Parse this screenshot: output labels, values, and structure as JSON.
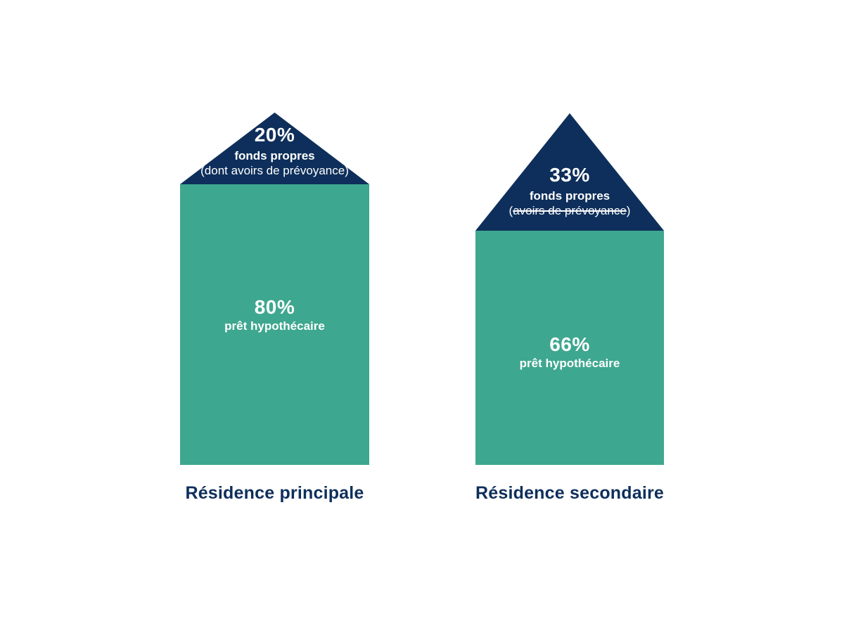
{
  "colors": {
    "roof_navy": "#0e2f5b",
    "body_teal": "#3ea78f",
    "text_white": "#ffffff",
    "label_navy": "#0e2f5b",
    "background": "#ffffff"
  },
  "chart_data": {
    "type": "bar",
    "subtype": "stacked-house-pictogram",
    "categories": [
      "Résidence principale",
      "Résidence secondaire"
    ],
    "series": [
      {
        "name": "fonds propres",
        "values": [
          20,
          33
        ],
        "color": "#0e2f5b",
        "shape": "roof-triangle"
      },
      {
        "name": "prêt hypothécaire",
        "values": [
          80,
          66
        ],
        "color": "#3ea78f",
        "shape": "body-rectangle"
      }
    ],
    "value_format": "percent",
    "annotations": [
      "Résidence principale : 20% fonds propres (dont avoirs de prévoyance), 80% prêt hypothécaire",
      "Résidence secondaire : 33% fonds propres (avoirs de prévoyance — texte barré), 66% prêt hypothécaire"
    ],
    "legend_position": "none",
    "grid": false
  },
  "houses": [
    {
      "label": "Résidence principale",
      "roof": {
        "percent": "20%",
        "title": "fonds propres",
        "note_open": "(dont ",
        "note_text": "avoirs de prévoyance",
        "note_close": ")",
        "note_strikethrough": false
      },
      "body": {
        "percent": "80%",
        "title": "prêt hypothécaire"
      }
    },
    {
      "label": "Résidence secondaire",
      "roof": {
        "percent": "33%",
        "title": "fonds propres",
        "note_open": "(",
        "note_text": "avoirs de prévoyance",
        "note_close": ")",
        "note_strikethrough": true
      },
      "body": {
        "percent": "66%",
        "title": "prêt hypothécaire"
      }
    }
  ]
}
